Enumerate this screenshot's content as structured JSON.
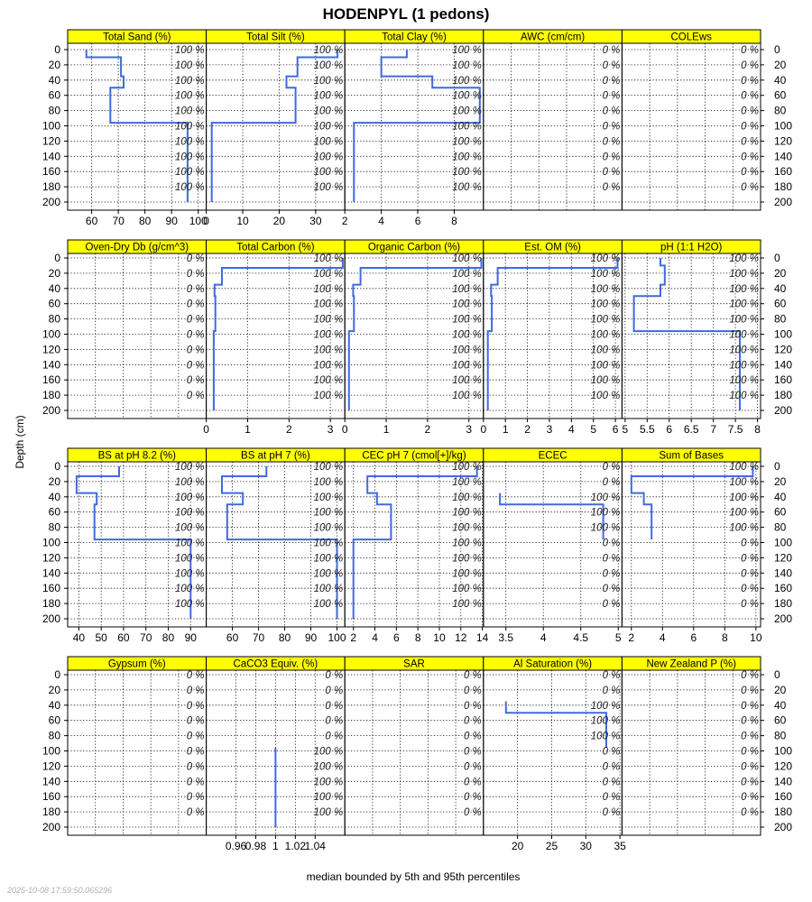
{
  "title": "HODENPYL (1 pedons)",
  "ylabel": "Depth (cm)",
  "xlabel": "median bounded by 5th and 95th percentiles",
  "timestamp": "2025-10-08 17:59:50.065296",
  "colors": {
    "strip": "#ffff00",
    "line": "#4169e1",
    "panel_border": "#000000",
    "grid": "#000000"
  },
  "chart_data": {
    "type": "line",
    "depth_range": [
      0,
      200
    ],
    "depth_ticks": [
      0,
      20,
      40,
      60,
      80,
      100,
      120,
      140,
      160,
      180,
      200
    ],
    "pct_depths": [
      0,
      20,
      40,
      60,
      80,
      100,
      120,
      140,
      160,
      180
    ],
    "rows": [
      {
        "panels": [
          {
            "name": "Total Sand (%)",
            "xlim": [
              51,
              103
            ],
            "ticks": [
              60,
              70,
              80,
              90,
              100
            ],
            "median": [
              [
                58,
                0
              ],
              [
                58,
                10
              ],
              [
                71,
                10
              ],
              [
                71,
                35
              ],
              [
                72,
                35
              ],
              [
                72,
                50
              ],
              [
                67,
                50
              ],
              [
                67,
                96
              ],
              [
                96,
                96
              ],
              [
                96,
                200
              ]
            ],
            "pct": [
              "100 %",
              "100 %",
              "100 %",
              "100 %",
              "100 %",
              "100 %",
              "100 %",
              "100 %",
              "100 %",
              "100 %"
            ]
          },
          {
            "name": "Total Silt (%)",
            "xlim": [
              0,
              38
            ],
            "ticks": [
              0,
              10,
              20,
              30
            ],
            "median": [
              [
                36,
                0
              ],
              [
                36,
                10
              ],
              [
                25,
                10
              ],
              [
                25,
                35
              ],
              [
                22,
                35
              ],
              [
                22,
                50
              ],
              [
                24.5,
                50
              ],
              [
                24.5,
                96
              ],
              [
                1.5,
                96
              ],
              [
                1.5,
                200
              ]
            ],
            "pct": [
              "100 %",
              "100 %",
              "100 %",
              "100 %",
              "100 %",
              "100 %",
              "100 %",
              "100 %",
              "100 %",
              "100 %"
            ]
          },
          {
            "name": "Total Clay (%)",
            "xlim": [
              2,
              9.6
            ],
            "ticks": [
              2,
              4,
              6,
              8
            ],
            "median": [
              [
                5.4,
                0
              ],
              [
                5.4,
                10
              ],
              [
                4,
                10
              ],
              [
                4,
                35
              ],
              [
                6.8,
                35
              ],
              [
                6.8,
                50
              ],
              [
                9.4,
                50
              ],
              [
                9.4,
                96
              ],
              [
                2.5,
                96
              ],
              [
                2.5,
                200
              ]
            ],
            "pct": [
              "100 %",
              "100 %",
              "100 %",
              "100 %",
              "100 %",
              "100 %",
              "100 %",
              "100 %",
              "100 %",
              "100 %"
            ]
          },
          {
            "name": "AWC (cm/cm)",
            "xlim": null,
            "ticks": [],
            "median": [],
            "pct": [
              "0 %",
              "0 %",
              "0 %",
              "0 %",
              "0 %",
              "0 %",
              "0 %",
              "0 %",
              "0 %",
              "0 %"
            ]
          },
          {
            "name": "COLEws",
            "xlim": null,
            "ticks": [],
            "median": [],
            "pct": [
              "0 %",
              "0 %",
              "0 %",
              "0 %",
              "0 %",
              "0 %",
              "0 %",
              "0 %",
              "0 %",
              "0 %"
            ]
          }
        ]
      },
      {
        "panels": [
          {
            "name": "Oven-Dry Db (g/cm^3)",
            "xlim": null,
            "ticks": [],
            "median": [],
            "pct": [
              "0 %",
              "0 %",
              "0 %",
              "0 %",
              "0 %",
              "0 %",
              "0 %",
              "0 %",
              "0 %",
              "0 %"
            ]
          },
          {
            "name": "Total Carbon (%)",
            "xlim": [
              0,
              3.35
            ],
            "ticks": [
              0,
              1,
              2,
              3
            ],
            "median": [
              [
                3.3,
                0
              ],
              [
                3.3,
                13
              ],
              [
                0.38,
                13
              ],
              [
                0.38,
                35
              ],
              [
                0.2,
                35
              ],
              [
                0.2,
                50
              ],
              [
                0.22,
                50
              ],
              [
                0.22,
                96
              ],
              [
                0.18,
                96
              ],
              [
                0.18,
                200
              ]
            ],
            "pct": [
              "100 %",
              "100 %",
              "100 %",
              "100 %",
              "100 %",
              "100 %",
              "100 %",
              "100 %",
              "100 %",
              "100 %"
            ]
          },
          {
            "name": "Organic Carbon (%)",
            "xlim": [
              0,
              3.35
            ],
            "ticks": [
              0,
              1,
              2,
              3
            ],
            "median": [
              [
                3.3,
                0
              ],
              [
                3.3,
                13
              ],
              [
                0.38,
                13
              ],
              [
                0.38,
                35
              ],
              [
                0.2,
                35
              ],
              [
                0.2,
                50
              ],
              [
                0.22,
                50
              ],
              [
                0.22,
                96
              ],
              [
                0.1,
                96
              ],
              [
                0.1,
                200
              ]
            ],
            "pct": [
              "100 %",
              "100 %",
              "100 %",
              "100 %",
              "100 %",
              "100 %",
              "100 %",
              "100 %",
              "100 %",
              "100 %"
            ]
          },
          {
            "name": "Est. OM (%)",
            "xlim": [
              0,
              6.3
            ],
            "ticks": [
              0,
              1,
              2,
              3,
              4,
              5,
              6
            ],
            "median": [
              [
                6.1,
                0
              ],
              [
                6.1,
                13
              ],
              [
                0.65,
                13
              ],
              [
                0.65,
                35
              ],
              [
                0.35,
                35
              ],
              [
                0.35,
                50
              ],
              [
                0.38,
                50
              ],
              [
                0.38,
                96
              ],
              [
                0.2,
                96
              ],
              [
                0.2,
                200
              ]
            ],
            "pct": [
              "100 %",
              "100 %",
              "100 %",
              "100 %",
              "100 %",
              "100 %",
              "100 %",
              "100 %",
              "100 %",
              "100 %"
            ]
          },
          {
            "name": "pH (1:1 H2O)",
            "xlim": [
              4.93,
              8.07
            ],
            "ticks": [
              5.0,
              5.5,
              6.0,
              6.5,
              7.0,
              7.5,
              8.0
            ],
            "median": [
              [
                5.8,
                0
              ],
              [
                5.8,
                10
              ],
              [
                5.9,
                10
              ],
              [
                5.9,
                35
              ],
              [
                5.8,
                35
              ],
              [
                5.8,
                50
              ],
              [
                5.2,
                50
              ],
              [
                5.2,
                96
              ],
              [
                7.6,
                96
              ],
              [
                7.6,
                200
              ]
            ],
            "pct": [
              "100 %",
              "100 %",
              "100 %",
              "100 %",
              "100 %",
              "100 %",
              "100 %",
              "100 %",
              "100 %",
              "100 %"
            ]
          }
        ]
      },
      {
        "panels": [
          {
            "name": "BS at pH 8.2 (%)",
            "xlim": [
              35,
              97
            ],
            "ticks": [
              40,
              50,
              60,
              70,
              80,
              90
            ],
            "median": [
              [
                58,
                0
              ],
              [
                58,
                13
              ],
              [
                39,
                13
              ],
              [
                39,
                35
              ],
              [
                48,
                35
              ],
              [
                48,
                50
              ],
              [
                47,
                50
              ],
              [
                47,
                96
              ],
              [
                90,
                96
              ],
              [
                90,
                200
              ]
            ],
            "pct": [
              "100 %",
              "100 %",
              "100 %",
              "100 %",
              "100 %",
              "100 %",
              "100 %",
              "100 %",
              "100 %",
              "100 %"
            ]
          },
          {
            "name": "BS at pH 7 (%)",
            "xlim": [
              50,
              103
            ],
            "ticks": [
              60,
              70,
              80,
              90,
              100
            ],
            "median": [
              [
                73,
                0
              ],
              [
                73,
                13
              ],
              [
                56,
                13
              ],
              [
                56,
                35
              ],
              [
                64,
                35
              ],
              [
                64,
                50
              ],
              [
                58,
                50
              ],
              [
                58,
                96
              ],
              [
                100,
                96
              ],
              [
                100,
                200
              ]
            ],
            "pct": [
              "100 %",
              "100 %",
              "100 %",
              "100 %",
              "100 %",
              "100 %",
              "100 %",
              "100 %",
              "100 %",
              "100 %"
            ]
          },
          {
            "name": "CEC pH 7 (cmol[+]/kg)",
            "xlim": [
              1.2,
              14.1
            ],
            "ticks": [
              2,
              4,
              6,
              8,
              10,
              12,
              14
            ],
            "median": [
              [
                13.5,
                0
              ],
              [
                13.5,
                13
              ],
              [
                3.3,
                13
              ],
              [
                3.3,
                35
              ],
              [
                4.2,
                35
              ],
              [
                4.2,
                50
              ],
              [
                5.5,
                50
              ],
              [
                5.5,
                96
              ],
              [
                2.0,
                96
              ],
              [
                2.0,
                200
              ]
            ],
            "pct": [
              "100 %",
              "100 %",
              "100 %",
              "100 %",
              "100 %",
              "100 %",
              "100 %",
              "100 %",
              "100 %",
              "100 %"
            ]
          },
          {
            "name": "ECEC",
            "xlim": [
              3.2,
              5.05
            ],
            "ticks": [
              3.5,
              4.0,
              4.5,
              5.0
            ],
            "median": [
              [
                3.42,
                35
              ],
              [
                3.42,
                50
              ],
              [
                4.8,
                50
              ],
              [
                4.8,
                96
              ]
            ],
            "pct": [
              "0 %",
              "0 %",
              "100 %",
              "100 %",
              "100 %",
              "0 %",
              "0 %",
              "0 %",
              "0 %",
              "0 %"
            ]
          },
          {
            "name": "Sum of Bases",
            "xlim": [
              1.4,
              10.3
            ],
            "ticks": [
              2,
              4,
              6,
              8,
              10
            ],
            "median": [
              [
                9.8,
                0
              ],
              [
                9.8,
                13
              ],
              [
                2.0,
                13
              ],
              [
                2.0,
                35
              ],
              [
                2.8,
                35
              ],
              [
                2.8,
                50
              ],
              [
                3.3,
                50
              ],
              [
                3.3,
                96
              ]
            ],
            "pct": [
              "100 %",
              "100 %",
              "100 %",
              "100 %",
              "100 %",
              "0 %",
              "0 %",
              "0 %",
              "0 %",
              "0 %"
            ]
          }
        ]
      },
      {
        "panels": [
          {
            "name": "Gypsum (%)",
            "xlim": null,
            "ticks": [],
            "median": [],
            "pct": [
              "0 %",
              "0 %",
              "0 %",
              "0 %",
              "0 %",
              "0 %",
              "0 %",
              "0 %",
              "0 %",
              "0 %"
            ]
          },
          {
            "name": "CaCO3 Equiv. (%)",
            "xlim": [
              0.93,
              1.07
            ],
            "ticks": [
              0.96,
              0.98,
              1.0,
              1.02,
              1.04
            ],
            "median": [
              [
                1.0,
                96
              ],
              [
                1.0,
                200
              ]
            ],
            "pct": [
              "0 %",
              "0 %",
              "0 %",
              "0 %",
              "0 %",
              "100 %",
              "100 %",
              "100 %",
              "100 %",
              "100 %"
            ]
          },
          {
            "name": "SAR",
            "xlim": null,
            "ticks": [],
            "median": [],
            "pct": [
              "0 %",
              "0 %",
              "0 %",
              "0 %",
              "0 %",
              "0 %",
              "0 %",
              "0 %",
              "0 %",
              "0 %"
            ]
          },
          {
            "name": "Al Saturation (%)",
            "xlim": [
              15,
              35.3
            ],
            "ticks": [
              20,
              25,
              30,
              35
            ],
            "median": [
              [
                18.3,
                35
              ],
              [
                18.3,
                50
              ],
              [
                33,
                50
              ],
              [
                33,
                96
              ]
            ],
            "pct": [
              "0 %",
              "0 %",
              "100 %",
              "100 %",
              "100 %",
              "0 %",
              "0 %",
              "0 %",
              "0 %",
              "0 %"
            ]
          },
          {
            "name": "New Zealand P (%)",
            "xlim": null,
            "ticks": [],
            "median": [],
            "pct": [
              "0 %",
              "0 %",
              "0 %",
              "0 %",
              "0 %",
              "0 %",
              "0 %",
              "0 %",
              "0 %",
              "0 %"
            ]
          }
        ]
      }
    ]
  }
}
